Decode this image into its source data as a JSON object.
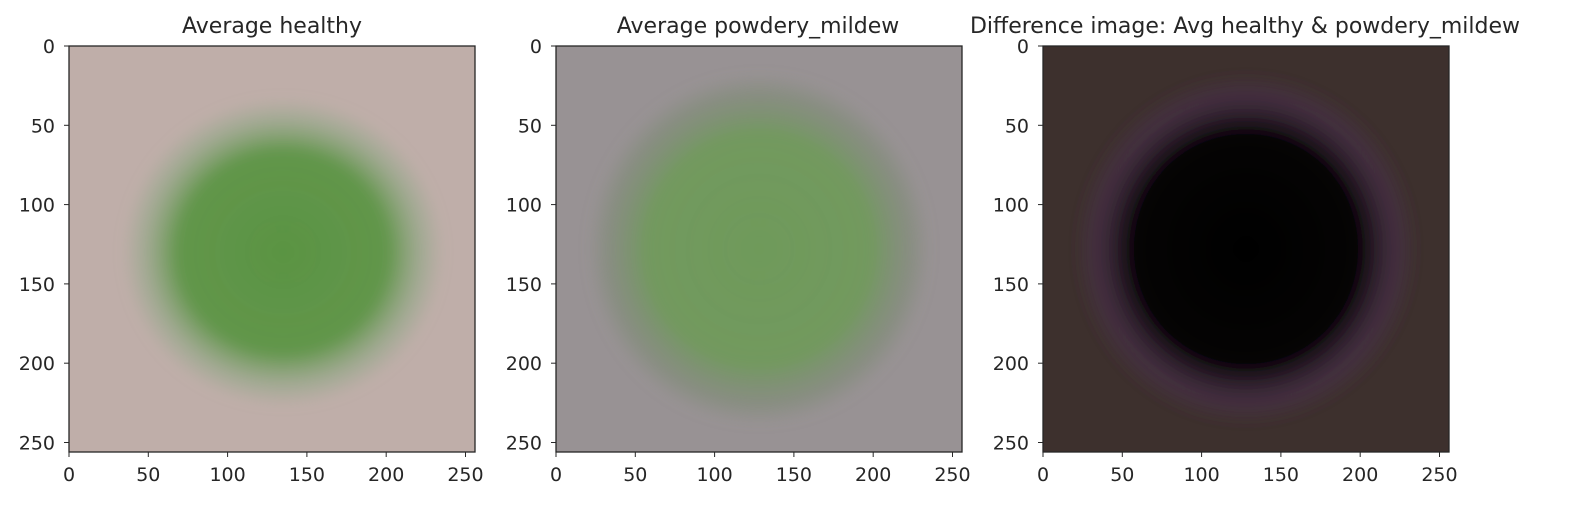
{
  "chart_data": [
    {
      "type": "image",
      "title": "Average healthy",
      "xlim": [
        0,
        256
      ],
      "ylim": [
        256,
        0
      ],
      "xticks": [
        0,
        50,
        100,
        150,
        200,
        250
      ],
      "yticks": [
        0,
        50,
        100,
        150,
        200,
        250
      ],
      "background_color": "#bfaea9",
      "leaf_color": "#5a9443",
      "leaf_edge_color": "#93a889",
      "leaf_center": [
        135,
        130
      ],
      "leaf_radius": [
        75,
        72
      ]
    },
    {
      "type": "image",
      "title": "Average powdery_mildew",
      "xlim": [
        0,
        256
      ],
      "ylim": [
        256,
        0
      ],
      "xticks": [
        0,
        50,
        100,
        150,
        200,
        250
      ],
      "yticks": [
        0,
        50,
        100,
        150,
        200,
        250
      ],
      "background_color": "#989294",
      "leaf_color": "#6f9a5a",
      "leaf_edge_color": "#7b8a72",
      "leaf_center": [
        128,
        128
      ],
      "leaf_radius": [
        80,
        82
      ]
    },
    {
      "type": "image",
      "title": "Difference image: Avg healthy & powdery_mildew",
      "xlim": [
        0,
        256
      ],
      "ylim": [
        256,
        0
      ],
      "xticks": [
        0,
        50,
        100,
        150,
        200,
        250
      ],
      "yticks": [
        0,
        50,
        100,
        150,
        200,
        250
      ],
      "background_color": "#3d302d",
      "leaf_color": "#030103",
      "leaf_edge_color": "#4a3050",
      "leaf_center": [
        128,
        128
      ],
      "leaf_radius": [
        80,
        82
      ]
    }
  ]
}
